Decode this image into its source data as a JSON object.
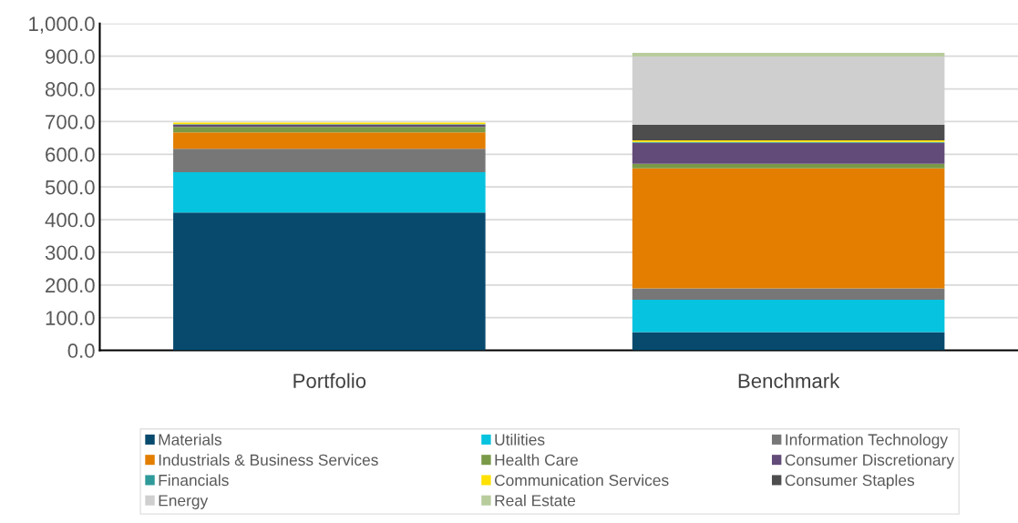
{
  "chart_data": {
    "type": "bar",
    "stacked": true,
    "categories": [
      "Portfolio",
      "Benchmark"
    ],
    "series": [
      {
        "name": "Materials",
        "color": "#074a6e",
        "values": [
          422,
          56
        ]
      },
      {
        "name": "Utilities",
        "color": "#06c3df",
        "values": [
          123,
          99
        ]
      },
      {
        "name": "Information Technology",
        "color": "#777777",
        "values": [
          72,
          35
        ]
      },
      {
        "name": "Industrials & Business Services",
        "color": "#e37e00",
        "values": [
          50,
          367
        ]
      },
      {
        "name": "Health Care",
        "color": "#7a9a48",
        "values": [
          17,
          14
        ]
      },
      {
        "name": "Consumer Discretionary",
        "color": "#624b78",
        "values": [
          7,
          64
        ]
      },
      {
        "name": "Financials",
        "color": "#2f9a9a",
        "values": [
          1,
          3
        ]
      },
      {
        "name": "Communication Services",
        "color": "#ffe100",
        "values": [
          5,
          5
        ]
      },
      {
        "name": "Consumer Staples",
        "color": "#4d4d4d",
        "values": [
          null,
          47
        ]
      },
      {
        "name": "Energy",
        "color": "#cfcfcf",
        "values": [
          0,
          209
        ]
      },
      {
        "name": "Real Estate",
        "color": "#b8cc9c",
        "values": [
          0,
          11
        ]
      }
    ],
    "ylim": [
      0,
      1000
    ],
    "yticks": [
      {
        "value": 0,
        "label": "0.0"
      },
      {
        "value": 100,
        "label": "100.0"
      },
      {
        "value": 200,
        "label": "200.0"
      },
      {
        "value": 300,
        "label": "300.0"
      },
      {
        "value": 400,
        "label": "400.0"
      },
      {
        "value": 500,
        "label": "500.0"
      },
      {
        "value": 600,
        "label": "600.0"
      },
      {
        "value": 700,
        "label": "700.0"
      },
      {
        "value": 800,
        "label": "800.0"
      },
      {
        "value": 900,
        "label": "900.0"
      },
      {
        "value": 1000,
        "label": "1,000.0"
      }
    ],
    "grid": "y",
    "legend": "bottom"
  }
}
